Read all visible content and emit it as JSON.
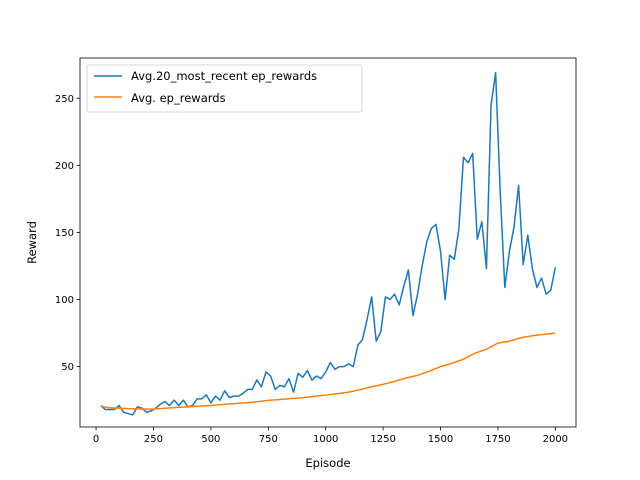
{
  "chart_data": {
    "type": "line",
    "title": "",
    "xlabel": "Episode",
    "ylabel": "Reward",
    "xlim": [
      -70,
      2090
    ],
    "ylim": [
      5,
      280
    ],
    "xticks": [
      0,
      250,
      500,
      750,
      1000,
      1250,
      1500,
      1750,
      2000
    ],
    "yticks": [
      50,
      100,
      150,
      200,
      250
    ],
    "grid": false,
    "legend_position": "top-left",
    "series": [
      {
        "name": "Avg.20_most_recent ep_rewards",
        "color": "#1f77b4",
        "points": [
          [
            20,
            21
          ],
          [
            40,
            18
          ],
          [
            60,
            18
          ],
          [
            80,
            18
          ],
          [
            100,
            21
          ],
          [
            120,
            16
          ],
          [
            140,
            15
          ],
          [
            160,
            14
          ],
          [
            180,
            20
          ],
          [
            200,
            19
          ],
          [
            220,
            16
          ],
          [
            240,
            17
          ],
          [
            260,
            19
          ],
          [
            280,
            22
          ],
          [
            300,
            24
          ],
          [
            320,
            21
          ],
          [
            340,
            25
          ],
          [
            360,
            21
          ],
          [
            380,
            25
          ],
          [
            400,
            20
          ],
          [
            420,
            21
          ],
          [
            440,
            26
          ],
          [
            460,
            26
          ],
          [
            480,
            29
          ],
          [
            500,
            23
          ],
          [
            520,
            28
          ],
          [
            540,
            25
          ],
          [
            560,
            32
          ],
          [
            580,
            27
          ],
          [
            600,
            28
          ],
          [
            620,
            28
          ],
          [
            640,
            30
          ],
          [
            660,
            33
          ],
          [
            680,
            33
          ],
          [
            700,
            40
          ],
          [
            720,
            35
          ],
          [
            740,
            46
          ],
          [
            760,
            43
          ],
          [
            780,
            33
          ],
          [
            800,
            36
          ],
          [
            820,
            35
          ],
          [
            840,
            41
          ],
          [
            860,
            31
          ],
          [
            880,
            45
          ],
          [
            900,
            42
          ],
          [
            920,
            47
          ],
          [
            940,
            40
          ],
          [
            960,
            43
          ],
          [
            980,
            41
          ],
          [
            1000,
            46
          ],
          [
            1020,
            53
          ],
          [
            1040,
            48
          ],
          [
            1060,
            50
          ],
          [
            1080,
            50
          ],
          [
            1100,
            52
          ],
          [
            1120,
            50
          ],
          [
            1140,
            66
          ],
          [
            1160,
            70
          ],
          [
            1180,
            85
          ],
          [
            1200,
            102
          ],
          [
            1220,
            69
          ],
          [
            1240,
            76
          ],
          [
            1260,
            102
          ],
          [
            1280,
            100
          ],
          [
            1300,
            104
          ],
          [
            1320,
            96
          ],
          [
            1340,
            110
          ],
          [
            1360,
            122
          ],
          [
            1380,
            88
          ],
          [
            1400,
            104
          ],
          [
            1420,
            125
          ],
          [
            1440,
            143
          ],
          [
            1460,
            153
          ],
          [
            1480,
            156
          ],
          [
            1500,
            136
          ],
          [
            1520,
            100
          ],
          [
            1540,
            133
          ],
          [
            1560,
            130
          ],
          [
            1580,
            153
          ],
          [
            1600,
            206
          ],
          [
            1620,
            202
          ],
          [
            1640,
            209
          ],
          [
            1660,
            145
          ],
          [
            1680,
            158
          ],
          [
            1700,
            123
          ],
          [
            1720,
            245
          ],
          [
            1740,
            269
          ],
          [
            1760,
            180
          ],
          [
            1780,
            109
          ],
          [
            1800,
            136
          ],
          [
            1820,
            154
          ],
          [
            1840,
            185
          ],
          [
            1860,
            126
          ],
          [
            1880,
            148
          ],
          [
            1900,
            123
          ],
          [
            1920,
            109
          ],
          [
            1940,
            116
          ],
          [
            1960,
            104
          ],
          [
            1980,
            107
          ],
          [
            2000,
            124
          ]
        ]
      },
      {
        "name": "Avg. ep_rewards",
        "color": "#ff7f0e",
        "points": [
          [
            20,
            20.5
          ],
          [
            50,
            19.5
          ],
          [
            80,
            19.2
          ],
          [
            110,
            19.0
          ],
          [
            140,
            18.7
          ],
          [
            170,
            18.5
          ],
          [
            200,
            18.4
          ],
          [
            250,
            18.3
          ],
          [
            300,
            19.0
          ],
          [
            350,
            19.5
          ],
          [
            400,
            20.0
          ],
          [
            450,
            20.6
          ],
          [
            500,
            21.0
          ],
          [
            550,
            21.8
          ],
          [
            600,
            22.4
          ],
          [
            650,
            23.0
          ],
          [
            700,
            23.8
          ],
          [
            750,
            24.8
          ],
          [
            800,
            25.5
          ],
          [
            850,
            26.2
          ],
          [
            900,
            26.8
          ],
          [
            950,
            27.8
          ],
          [
            1000,
            28.8
          ],
          [
            1050,
            29.8
          ],
          [
            1100,
            31.0
          ],
          [
            1150,
            32.8
          ],
          [
            1200,
            35.0
          ],
          [
            1250,
            36.8
          ],
          [
            1300,
            39.0
          ],
          [
            1350,
            41.5
          ],
          [
            1400,
            43.5
          ],
          [
            1450,
            46.5
          ],
          [
            1500,
            50.0
          ],
          [
            1550,
            52.5
          ],
          [
            1600,
            55.5
          ],
          [
            1650,
            60.0
          ],
          [
            1700,
            63.0
          ],
          [
            1750,
            67.5
          ],
          [
            1800,
            69.0
          ],
          [
            1850,
            71.5
          ],
          [
            1900,
            73.0
          ],
          [
            1950,
            74.0
          ],
          [
            2000,
            75.0
          ]
        ]
      }
    ]
  }
}
